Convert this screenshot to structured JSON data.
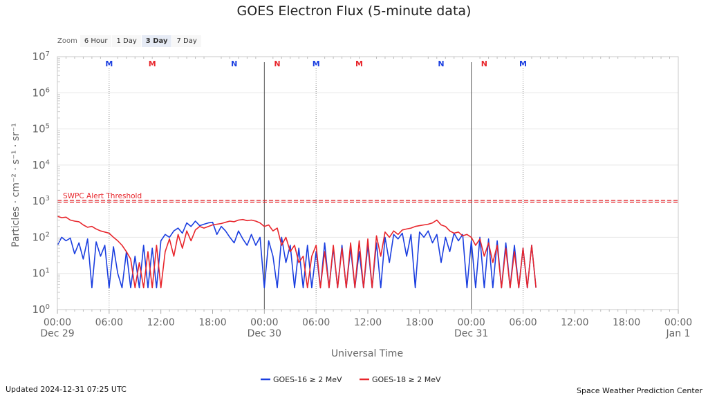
{
  "zoom": {
    "label": "Zoom",
    "options": [
      "6 Hour",
      "1 Day",
      "3 Day",
      "7 Day"
    ],
    "selected": "3 Day"
  },
  "footer": {
    "updated": "Updated 2024-12-31 07:25 UTC",
    "credit": "Space Weather Prediction Center"
  },
  "chart_data": {
    "type": "line",
    "title": "GOES Electron Flux (5-minute data)",
    "xlabel": "Universal Time",
    "ylabel": "Particles · cm⁻² · s⁻¹ · sr⁻¹",
    "y_scale": "log",
    "ylim": [
      1,
      10000000
    ],
    "y_ticks": [
      {
        "value": 10000000,
        "base": "10",
        "exp": "7"
      },
      {
        "value": 1000000,
        "base": "10",
        "exp": "6"
      },
      {
        "value": 100000,
        "base": "10",
        "exp": "5"
      },
      {
        "value": 10000,
        "base": "10",
        "exp": "4"
      },
      {
        "value": 1000,
        "base": "10",
        "exp": "3"
      },
      {
        "value": 100,
        "base": "10",
        "exp": "2"
      },
      {
        "value": 10,
        "base": "10",
        "exp": "1"
      },
      {
        "value": 1,
        "base": "10",
        "exp": "0"
      }
    ],
    "xlim": [
      "2024-12-29T00:00",
      "2025-01-01T00:00"
    ],
    "x_ticks": [
      {
        "time": "2024-12-29T00:00",
        "label": "00:00",
        "date": "Dec 29"
      },
      {
        "time": "2024-12-29T06:00",
        "label": "06:00",
        "date": ""
      },
      {
        "time": "2024-12-29T12:00",
        "label": "12:00",
        "date": ""
      },
      {
        "time": "2024-12-29T18:00",
        "label": "18:00",
        "date": ""
      },
      {
        "time": "2024-12-30T00:00",
        "label": "00:00",
        "date": "Dec 30"
      },
      {
        "time": "2024-12-30T06:00",
        "label": "06:00",
        "date": ""
      },
      {
        "time": "2024-12-30T12:00",
        "label": "12:00",
        "date": ""
      },
      {
        "time": "2024-12-30T18:00",
        "label": "18:00",
        "date": ""
      },
      {
        "time": "2024-12-31T00:00",
        "label": "00:00",
        "date": "Dec 31"
      },
      {
        "time": "2024-12-31T06:00",
        "label": "06:00",
        "date": ""
      },
      {
        "time": "2024-12-31T12:00",
        "label": "12:00",
        "date": ""
      },
      {
        "time": "2024-12-31T18:00",
        "label": "18:00",
        "date": ""
      },
      {
        "time": "2025-01-01T00:00",
        "label": "00:00",
        "date": "Jan 1"
      }
    ],
    "day_boundaries": [
      "2024-12-30T00:00",
      "2024-12-31T00:00"
    ],
    "threshold": {
      "value": 1000,
      "label": "SWPC Alert Threshold",
      "color": "#e8262c"
    },
    "markers": [
      {
        "time": "2024-12-29T06:00",
        "label": "M",
        "color": "#1a3ee0",
        "line": true
      },
      {
        "time": "2024-12-29T11:00",
        "label": "M",
        "color": "#e8262c",
        "line": false
      },
      {
        "time": "2024-12-29T20:30",
        "label": "N",
        "color": "#1a3ee0",
        "line": false
      },
      {
        "time": "2024-12-30T01:30",
        "label": "N",
        "color": "#e8262c",
        "line": false
      },
      {
        "time": "2024-12-30T06:00",
        "label": "M",
        "color": "#1a3ee0",
        "line": true
      },
      {
        "time": "2024-12-30T11:00",
        "label": "M",
        "color": "#e8262c",
        "line": false
      },
      {
        "time": "2024-12-30T20:30",
        "label": "N",
        "color": "#1a3ee0",
        "line": false
      },
      {
        "time": "2024-12-31T01:30",
        "label": "N",
        "color": "#e8262c",
        "line": false
      },
      {
        "time": "2024-12-31T06:00",
        "label": "M",
        "color": "#1a3ee0",
        "line": true
      }
    ],
    "x_unit": "hours after Dec 29 00:00 UTC",
    "series": [
      {
        "name": "GOES-16 ≥ 2 MeV",
        "color": "#1a3ee0",
        "points": [
          [
            0,
            60
          ],
          [
            0.5,
            100
          ],
          [
            1,
            80
          ],
          [
            1.5,
            95
          ],
          [
            2,
            35
          ],
          [
            2.5,
            70
          ],
          [
            3,
            25
          ],
          [
            3.5,
            90
          ],
          [
            4,
            4
          ],
          [
            4.5,
            75
          ],
          [
            5,
            30
          ],
          [
            5.5,
            60
          ],
          [
            6,
            4
          ],
          [
            6.5,
            55
          ],
          [
            7,
            10
          ],
          [
            7.5,
            4
          ],
          [
            8,
            40
          ],
          [
            8.5,
            4
          ],
          [
            9,
            30
          ],
          [
            9.5,
            4
          ],
          [
            10,
            60
          ],
          [
            10.5,
            4
          ],
          [
            11,
            50
          ],
          [
            11.5,
            4
          ],
          [
            12,
            80
          ],
          [
            12.5,
            120
          ],
          [
            13,
            100
          ],
          [
            13.5,
            150
          ],
          [
            14,
            180
          ],
          [
            14.5,
            130
          ],
          [
            15,
            250
          ],
          [
            15.5,
            200
          ],
          [
            16,
            280
          ],
          [
            16.5,
            210
          ],
          [
            17,
            230
          ],
          [
            17.5,
            250
          ],
          [
            18,
            260
          ],
          [
            18.5,
            120
          ],
          [
            19,
            200
          ],
          [
            19.5,
            150
          ],
          [
            20,
            100
          ],
          [
            20.5,
            70
          ],
          [
            21,
            150
          ],
          [
            21.5,
            90
          ],
          [
            22,
            60
          ],
          [
            22.5,
            120
          ],
          [
            23,
            60
          ],
          [
            23.5,
            100
          ],
          [
            24,
            4
          ],
          [
            24.5,
            80
          ],
          [
            25,
            30
          ],
          [
            25.5,
            4
          ],
          [
            26,
            100
          ],
          [
            26.5,
            20
          ],
          [
            27,
            60
          ],
          [
            27.5,
            4
          ],
          [
            28,
            50
          ],
          [
            28.5,
            4
          ],
          [
            29,
            60
          ],
          [
            29.5,
            4
          ],
          [
            30,
            40
          ],
          [
            30.5,
            4
          ],
          [
            31,
            70
          ],
          [
            31.5,
            4
          ],
          [
            32,
            50
          ],
          [
            32.5,
            4
          ],
          [
            33,
            60
          ],
          [
            33.5,
            4
          ],
          [
            34,
            50
          ],
          [
            34.5,
            4
          ],
          [
            35,
            40
          ],
          [
            35.5,
            4
          ],
          [
            36,
            60
          ],
          [
            36.5,
            4
          ],
          [
            37,
            70
          ],
          [
            37.5,
            4
          ],
          [
            38,
            100
          ],
          [
            38.5,
            20
          ],
          [
            39,
            120
          ],
          [
            39.5,
            90
          ],
          [
            40,
            130
          ],
          [
            40.5,
            30
          ],
          [
            41,
            120
          ],
          [
            41.5,
            4
          ],
          [
            42,
            140
          ],
          [
            42.5,
            100
          ],
          [
            43,
            150
          ],
          [
            43.5,
            70
          ],
          [
            44,
            120
          ],
          [
            44.5,
            20
          ],
          [
            45,
            100
          ],
          [
            45.5,
            40
          ],
          [
            46,
            130
          ],
          [
            46.5,
            80
          ],
          [
            47,
            120
          ],
          [
            47.5,
            4
          ],
          [
            48,
            80
          ],
          [
            48.5,
            4
          ],
          [
            49,
            100
          ],
          [
            49.5,
            4
          ],
          [
            50,
            90
          ],
          [
            50.5,
            4
          ],
          [
            51,
            80
          ],
          [
            51.5,
            4
          ],
          [
            52,
            70
          ],
          [
            52.5,
            4
          ],
          [
            53,
            60
          ],
          [
            53.5,
            4
          ],
          [
            54,
            50
          ],
          [
            54.5,
            4
          ],
          [
            55,
            60
          ],
          [
            55.5,
            4
          ]
        ]
      },
      {
        "name": "GOES-18 ≥ 2 MeV",
        "color": "#e8262c",
        "points": [
          [
            0,
            380
          ],
          [
            0.5,
            350
          ],
          [
            1,
            360
          ],
          [
            1.5,
            300
          ],
          [
            2,
            280
          ],
          [
            2.5,
            270
          ],
          [
            3,
            220
          ],
          [
            3.5,
            190
          ],
          [
            4,
            200
          ],
          [
            4.5,
            170
          ],
          [
            5,
            150
          ],
          [
            5.5,
            140
          ],
          [
            6,
            130
          ],
          [
            6.5,
            100
          ],
          [
            7,
            80
          ],
          [
            7.5,
            60
          ],
          [
            8,
            40
          ],
          [
            8.5,
            25
          ],
          [
            9,
            4
          ],
          [
            9.5,
            20
          ],
          [
            10,
            4
          ],
          [
            10.5,
            40
          ],
          [
            11,
            4
          ],
          [
            11.5,
            60
          ],
          [
            12,
            4
          ],
          [
            12.5,
            40
          ],
          [
            13,
            90
          ],
          [
            13.5,
            30
          ],
          [
            14,
            120
          ],
          [
            14.5,
            50
          ],
          [
            15,
            150
          ],
          [
            15.5,
            80
          ],
          [
            16,
            160
          ],
          [
            16.5,
            200
          ],
          [
            17,
            180
          ],
          [
            17.5,
            200
          ],
          [
            18,
            220
          ],
          [
            18.5,
            230
          ],
          [
            19,
            240
          ],
          [
            19.5,
            260
          ],
          [
            20,
            280
          ],
          [
            20.5,
            270
          ],
          [
            21,
            300
          ],
          [
            21.5,
            310
          ],
          [
            22,
            290
          ],
          [
            22.5,
            300
          ],
          [
            23,
            280
          ],
          [
            23.5,
            250
          ],
          [
            24,
            200
          ],
          [
            24.5,
            220
          ],
          [
            25,
            150
          ],
          [
            25.5,
            180
          ],
          [
            26,
            60
          ],
          [
            26.5,
            100
          ],
          [
            27,
            40
          ],
          [
            27.5,
            60
          ],
          [
            28,
            20
          ],
          [
            28.5,
            30
          ],
          [
            29,
            4
          ],
          [
            29.5,
            30
          ],
          [
            30,
            60
          ],
          [
            30.5,
            4
          ],
          [
            31,
            40
          ],
          [
            31.5,
            4
          ],
          [
            32,
            60
          ],
          [
            32.5,
            4
          ],
          [
            33,
            50
          ],
          [
            33.5,
            4
          ],
          [
            34,
            70
          ],
          [
            34.5,
            4
          ],
          [
            35,
            80
          ],
          [
            35.5,
            4
          ],
          [
            36,
            90
          ],
          [
            36.5,
            4
          ],
          [
            37,
            110
          ],
          [
            37.5,
            30
          ],
          [
            38,
            140
          ],
          [
            38.5,
            100
          ],
          [
            39,
            150
          ],
          [
            39.5,
            120
          ],
          [
            40,
            160
          ],
          [
            40.5,
            170
          ],
          [
            41,
            180
          ],
          [
            41.5,
            200
          ],
          [
            42,
            210
          ],
          [
            42.5,
            220
          ],
          [
            43,
            230
          ],
          [
            43.5,
            250
          ],
          [
            44,
            300
          ],
          [
            44.5,
            220
          ],
          [
            45,
            200
          ],
          [
            45.5,
            150
          ],
          [
            46,
            130
          ],
          [
            46.5,
            140
          ],
          [
            47,
            110
          ],
          [
            47.5,
            120
          ],
          [
            48,
            100
          ],
          [
            48.5,
            60
          ],
          [
            49,
            90
          ],
          [
            49.5,
            30
          ],
          [
            50,
            70
          ],
          [
            50.5,
            20
          ],
          [
            51,
            60
          ],
          [
            51.5,
            4
          ],
          [
            52,
            50
          ],
          [
            52.5,
            4
          ],
          [
            53,
            40
          ],
          [
            53.5,
            4
          ],
          [
            54,
            50
          ],
          [
            54.5,
            4
          ],
          [
            55,
            60
          ],
          [
            55.5,
            4
          ]
        ]
      }
    ],
    "legend": {
      "position": "bottom-center"
    }
  }
}
